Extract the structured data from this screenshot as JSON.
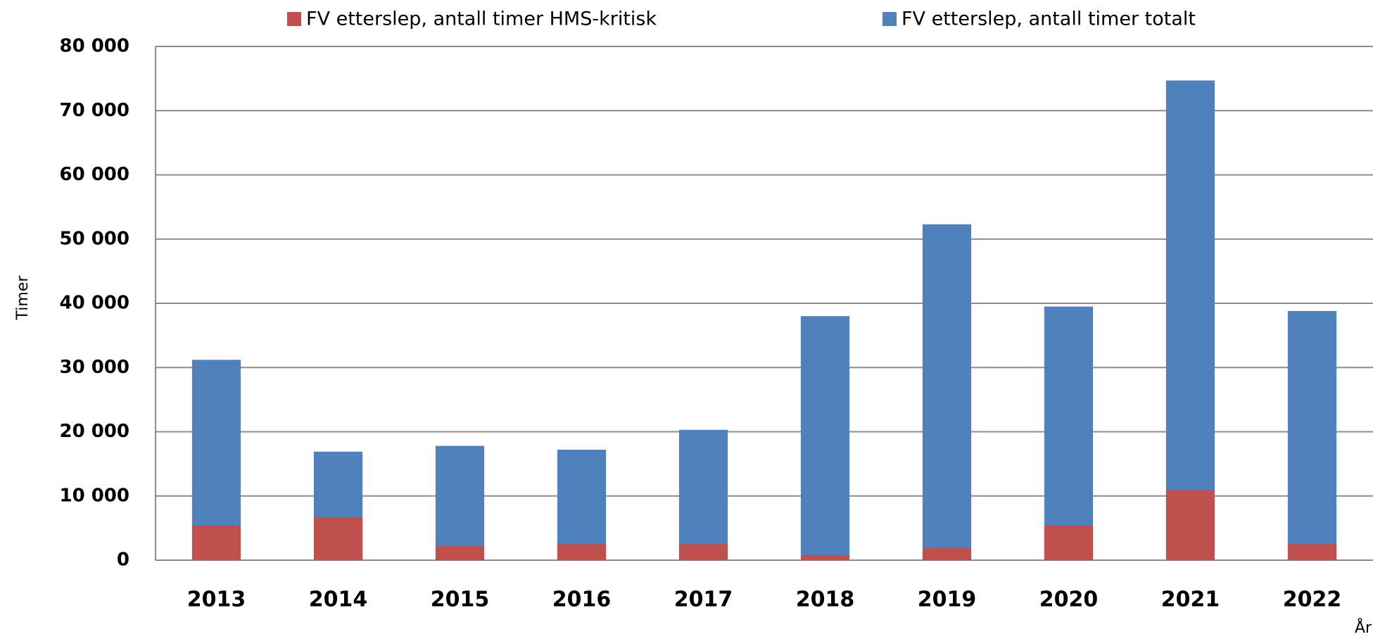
{
  "chart_data": {
    "type": "bar",
    "overlap": true,
    "y_label": "Timer",
    "x_label": "År",
    "categories": [
      "2013",
      "2014",
      "2015",
      "2016",
      "2017",
      "2018",
      "2019",
      "2020",
      "2021",
      "2022"
    ],
    "series": [
      {
        "name": "FV etterslep, antall timer totalt",
        "color": "#4f81bd",
        "values": [
          31200,
          16900,
          17800,
          17200,
          20300,
          38000,
          52300,
          39500,
          74700,
          38800
        ]
      },
      {
        "name": "FV etterslep, antall timer HMS-kritisk",
        "color": "#c0504d",
        "values": [
          5400,
          6700,
          2200,
          2500,
          2500,
          800,
          1900,
          5400,
          10900,
          2500
        ]
      }
    ],
    "legend_order": [
      1,
      0
    ],
    "ylim": [
      0,
      80000
    ],
    "yticks": [
      0,
      {
        "value": 10000,
        "label": "10 000"
      },
      {
        "value": 20000,
        "label": "20 000"
      },
      {
        "value": 30000,
        "label": "30 000"
      },
      {
        "value": 40000,
        "label": "40 000"
      },
      {
        "value": 50000,
        "label": "50 000"
      },
      {
        "value": 60000,
        "label": "60 000"
      },
      {
        "value": 70000,
        "label": "70 000"
      },
      {
        "value": 80000,
        "label": "80 000"
      }
    ],
    "grid": true
  }
}
